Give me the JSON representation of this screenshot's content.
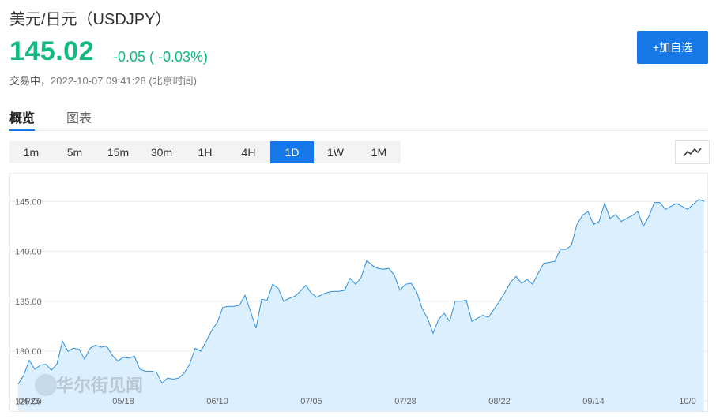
{
  "header": {
    "title": "美元/日元（USDJPY）",
    "price": "145.02",
    "change": "-0.05 ( -0.03%)",
    "status_label": "交易中，",
    "timestamp": "2022-10-07 09:41:28 (北京时间)"
  },
  "actions": {
    "add_label": "+加自选"
  },
  "tabs": [
    {
      "label": "概览",
      "active": true
    },
    {
      "label": "图表",
      "active": false
    }
  ],
  "periods": [
    {
      "label": "1m",
      "active": false
    },
    {
      "label": "5m",
      "active": false
    },
    {
      "label": "15m",
      "active": false
    },
    {
      "label": "30m",
      "active": false
    },
    {
      "label": "1H",
      "active": false
    },
    {
      "label": "4H",
      "active": false
    },
    {
      "label": "1D",
      "active": true
    },
    {
      "label": "1W",
      "active": false
    },
    {
      "label": "1M",
      "active": false
    }
  ],
  "chart_type_icon": "line-chart-icon",
  "watermark": "华尔街见闻",
  "colors": {
    "up": "#13b882",
    "accent": "#1677e6",
    "line": "#2f8fe0",
    "fill": "#dcefff"
  },
  "chart_data": {
    "type": "area",
    "ylim": [
      124.0,
      147.0
    ],
    "y_ticks": [
      "125.00",
      "130.00",
      "135.00",
      "140.00",
      "145.00"
    ],
    "x_ticks": [
      {
        "label": "04/25",
        "index": 2
      },
      {
        "label": "05/18",
        "index": 19
      },
      {
        "label": "06/10",
        "index": 36
      },
      {
        "label": "07/05",
        "index": 53
      },
      {
        "label": "07/28",
        "index": 70
      },
      {
        "label": "08/22",
        "index": 87
      },
      {
        "label": "09/14",
        "index": 104
      },
      {
        "label": "10/0",
        "index": 121
      }
    ],
    "values": [
      126.7,
      127.6,
      129.1,
      128.2,
      128.6,
      128.7,
      128.1,
      128.7,
      131.0,
      130.0,
      130.3,
      130.2,
      129.2,
      130.3,
      130.6,
      130.4,
      130.5,
      129.6,
      129.0,
      129.4,
      129.3,
      129.5,
      128.2,
      128.0,
      128.0,
      127.9,
      126.8,
      127.3,
      127.2,
      127.3,
      127.8,
      128.7,
      130.3,
      130.0,
      131.0,
      132.1,
      132.9,
      134.4,
      134.5,
      134.5,
      134.6,
      135.6,
      134.0,
      132.3,
      135.2,
      135.1,
      136.7,
      136.3,
      135.0,
      135.3,
      135.5,
      136.0,
      136.6,
      135.8,
      135.4,
      135.7,
      135.9,
      136.0,
      136.0,
      136.1,
      137.3,
      136.7,
      137.4,
      139.1,
      138.6,
      138.3,
      138.2,
      138.3,
      137.6,
      136.1,
      136.7,
      136.8,
      136.0,
      134.3,
      133.3,
      131.8,
      133.2,
      133.8,
      133.0,
      135.0,
      135.0,
      135.1,
      133.0,
      133.3,
      133.6,
      133.4,
      134.2,
      135.0,
      135.9,
      136.9,
      137.5,
      136.8,
      137.2,
      136.7,
      137.8,
      138.8,
      138.9,
      139.0,
      140.2,
      140.2,
      140.6,
      142.7,
      143.6,
      144.0,
      142.7,
      143.0,
      144.8,
      143.3,
      143.7,
      143.0,
      143.3,
      143.6,
      144.0,
      142.5,
      143.5,
      144.9,
      144.9,
      144.2,
      144.5,
      144.8,
      144.5,
      144.2,
      144.7,
      145.2,
      145.02
    ]
  }
}
